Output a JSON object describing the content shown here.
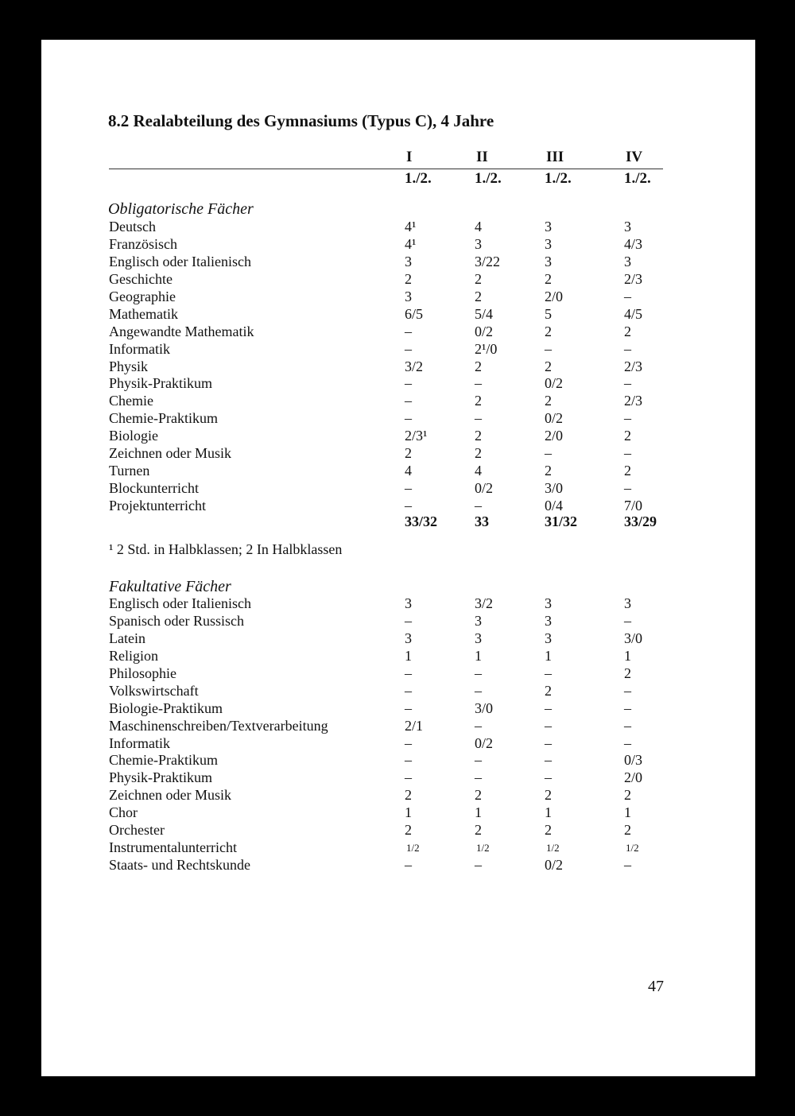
{
  "title": "8.2 Realabteilung des Gymnasiums (Typus C), 4 Jahre",
  "columns": [
    {
      "roman": "I",
      "sub": "1./2."
    },
    {
      "roman": "II",
      "sub": "1./2."
    },
    {
      "roman": "III",
      "sub": "1./2."
    },
    {
      "roman": "IV",
      "sub": "1./2."
    }
  ],
  "obligatory": {
    "heading": "Obligatorische Fächer",
    "rows": [
      {
        "subject": "Deutsch",
        "values": [
          "4¹",
          "4",
          "3",
          "3"
        ]
      },
      {
        "subject": "Französisch",
        "values": [
          "4¹",
          "3",
          "3",
          "4/3"
        ]
      },
      {
        "subject": "Englisch oder Italienisch",
        "values": [
          "3",
          "3/22",
          "3",
          "3"
        ]
      },
      {
        "subject": "Geschichte",
        "values": [
          "2",
          "2",
          "2",
          "2/3"
        ]
      },
      {
        "subject": "Geographie",
        "values": [
          "3",
          "2",
          "2/0",
          "–"
        ]
      },
      {
        "subject": "Mathematik",
        "values": [
          "6/5",
          "5/4",
          "5",
          "4/5"
        ]
      },
      {
        "subject": "Angewandte Mathematik",
        "values": [
          "–",
          "0/2",
          "2",
          "2"
        ]
      },
      {
        "subject": "Informatik",
        "values": [
          "–",
          "2¹/0",
          "–",
          "–"
        ]
      },
      {
        "subject": "Physik",
        "values": [
          "3/2",
          "2",
          "2",
          "2/3"
        ]
      },
      {
        "subject": "Physik-Praktikum",
        "values": [
          "–",
          "–",
          "0/2",
          "–"
        ]
      },
      {
        "subject": "Chemie",
        "values": [
          "–",
          "2",
          "2",
          "2/3"
        ]
      },
      {
        "subject": "Chemie-Praktikum",
        "values": [
          "–",
          "–",
          "0/2",
          "–"
        ]
      },
      {
        "subject": "Biologie",
        "values": [
          "2/3¹",
          "2",
          "2/0",
          "2"
        ]
      },
      {
        "subject": "Zeichnen oder Musik",
        "values": [
          "2",
          "2",
          "–",
          "–"
        ]
      },
      {
        "subject": "Turnen",
        "values": [
          "4",
          "4",
          "2",
          "2"
        ]
      },
      {
        "subject": "Blockunterricht",
        "values": [
          "–",
          "0/2",
          "3/0",
          "–"
        ]
      },
      {
        "subject": "Projektunterricht",
        "values": [
          "–",
          "–",
          "0/4",
          "7/0"
        ]
      }
    ],
    "totals": [
      "33/32",
      "33",
      "31/32",
      "33/29"
    ]
  },
  "footnote": "¹ 2 Std. in Halbklassen; 2 In Halbklassen",
  "optional": {
    "heading": "Fakultative Fächer",
    "rows": [
      {
        "subject": "Englisch oder Italienisch",
        "values": [
          "3",
          "3/2",
          "3",
          "3"
        ]
      },
      {
        "subject": "Spanisch oder Russisch",
        "values": [
          "–",
          "3",
          "3",
          "–"
        ]
      },
      {
        "subject": "Latein",
        "values": [
          "3",
          "3",
          "3",
          "3/0"
        ]
      },
      {
        "subject": "Religion",
        "values": [
          "1",
          "1",
          "1",
          "1"
        ]
      },
      {
        "subject": "Philosophie",
        "values": [
          "–",
          "–",
          "–",
          "2"
        ]
      },
      {
        "subject": "Volkswirtschaft",
        "values": [
          "–",
          "–",
          "2",
          "–"
        ]
      },
      {
        "subject": "Biologie-Praktikum",
        "values": [
          "–",
          "3/0",
          "–",
          "–"
        ]
      },
      {
        "subject": "Maschinenschreiben/Textverarbeitung",
        "values": [
          "2/1",
          "–",
          "–",
          "–"
        ]
      },
      {
        "subject": "Informatik",
        "values": [
          "–",
          "0/2",
          "–",
          "–"
        ]
      },
      {
        "subject": "Chemie-Praktikum",
        "values": [
          "–",
          "–",
          "–",
          "0/3"
        ]
      },
      {
        "subject": "Physik-Praktikum",
        "values": [
          "–",
          "–",
          "–",
          "2/0"
        ]
      },
      {
        "subject": "Zeichnen oder Musik",
        "values": [
          "2",
          "2",
          "2",
          "2"
        ]
      },
      {
        "subject": "Chor",
        "values": [
          "1",
          "1",
          "1",
          "1"
        ]
      },
      {
        "subject": "Orchester",
        "values": [
          "2",
          "2",
          "2",
          "2"
        ]
      },
      {
        "subject": "Instrumentalunterricht",
        "values": [
          "1/2",
          "1/2",
          "1/2",
          "1/2"
        ],
        "small": true
      },
      {
        "subject": "Staats- und Rechtskunde",
        "values": [
          "–",
          "–",
          "0/2",
          "–"
        ]
      }
    ]
  },
  "page_number": "47"
}
